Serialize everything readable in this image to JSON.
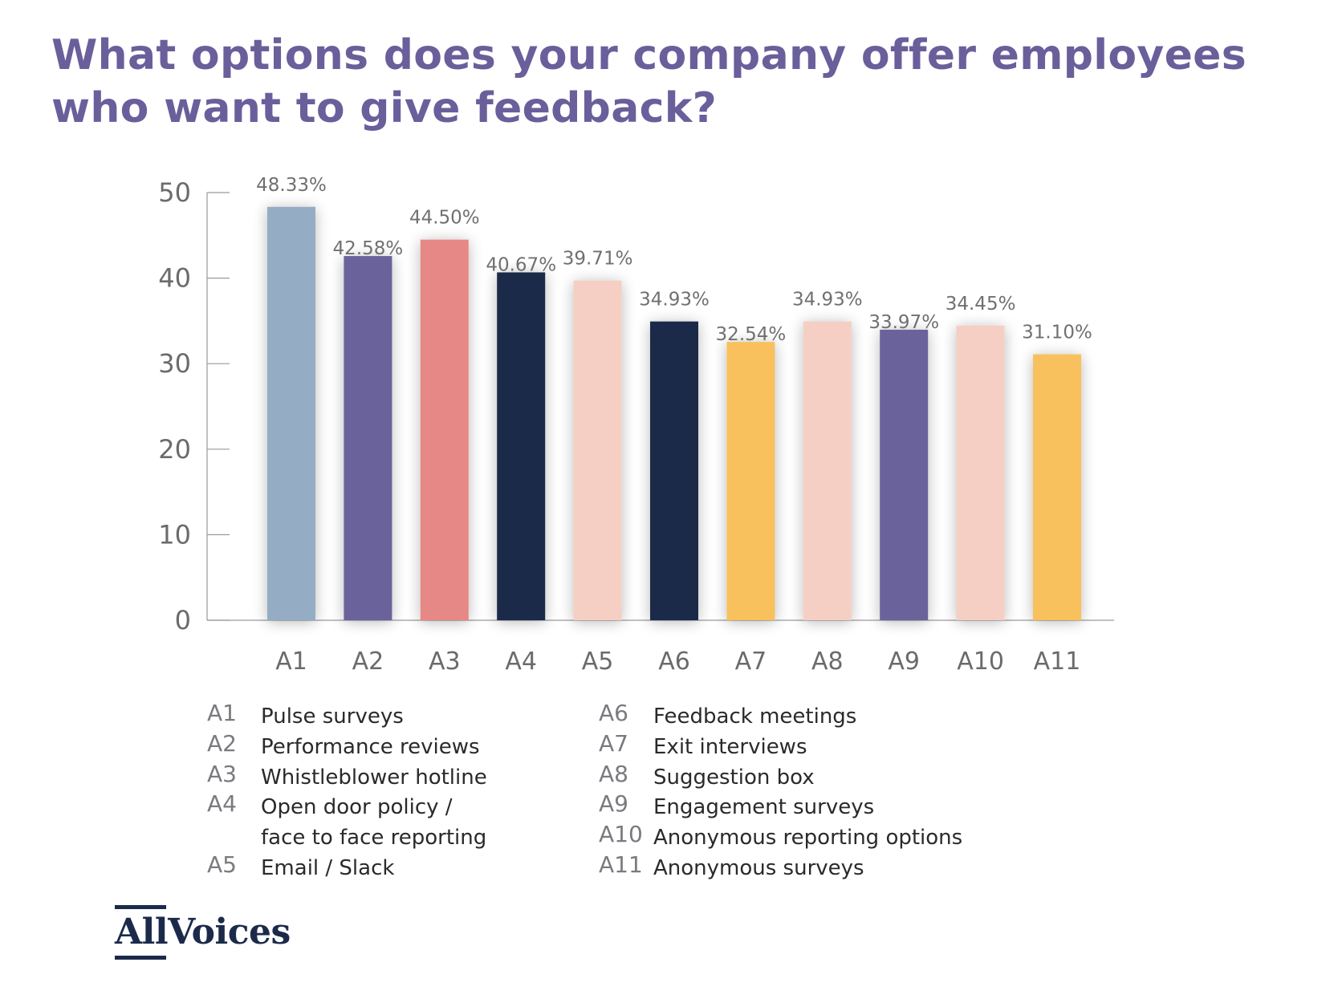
{
  "title_lines": [
    "What options does your company offer employees",
    "who want to give feedback?"
  ],
  "chart_data": {
    "type": "bar",
    "title": "What options does your company offer employees who want to give feedback?",
    "categories": [
      "A1",
      "A2",
      "A3",
      "A4",
      "A5",
      "A6",
      "A7",
      "A8",
      "A9",
      "A10",
      "A11"
    ],
    "values": [
      48.33,
      42.58,
      44.5,
      40.67,
      39.71,
      34.93,
      32.54,
      34.93,
      33.97,
      34.45,
      31.1
    ],
    "data_labels": [
      "48.33%",
      "42.58%",
      "44.50%",
      "40.67%",
      "39.71%",
      "34.93%",
      "32.54%",
      "34.93%",
      "33.97%",
      "34.45%",
      "31.10%"
    ],
    "colors": [
      "#94adc4",
      "#6a639b",
      "#e68885",
      "#1e2a4a",
      "#f5cfc4",
      "#1e2a4a",
      "#f8c15d",
      "#f5cfc4",
      "#6a639b",
      "#f5cfc4",
      "#f8c15d"
    ],
    "ylim": [
      0,
      50
    ],
    "yticks": [
      "0",
      "10",
      "20",
      "30",
      "40",
      "50"
    ],
    "xlabel": "",
    "ylabel": "",
    "grid": false
  },
  "legend": {
    "left": [
      {
        "code": "A1",
        "label": "Pulse surveys"
      },
      {
        "code": "A2",
        "label": "Performance reviews"
      },
      {
        "code": "A3",
        "label": "Whistleblower hotline"
      },
      {
        "code": "A4",
        "label": "Open door policy /"
      },
      {
        "code": "",
        "label": "face to face reporting"
      },
      {
        "code": "A5",
        "label": "Email / Slack"
      }
    ],
    "right": [
      {
        "code": "A6",
        "label": "Feedback meetings"
      },
      {
        "code": "A7",
        "label": "Exit interviews"
      },
      {
        "code": "A8",
        "label": "Suggestion box"
      },
      {
        "code": "A9",
        "label": "Engagement surveys"
      },
      {
        "code": "A10",
        "label": "Anonymous reporting options"
      },
      {
        "code": "A11",
        "label": "Anonymous surveys"
      }
    ]
  },
  "logo": {
    "text": "AllVoices",
    "color": "#1c2a4a"
  }
}
